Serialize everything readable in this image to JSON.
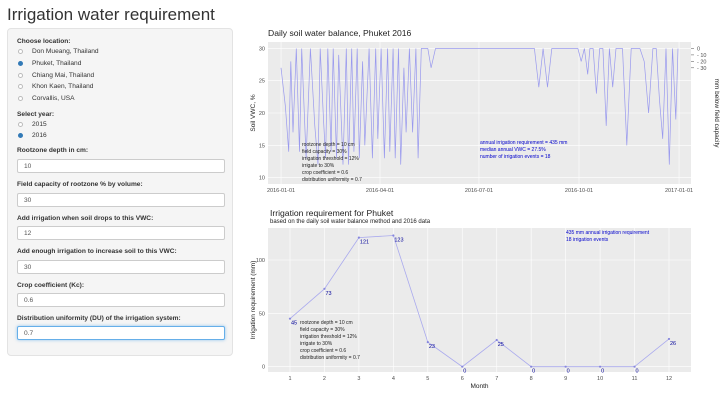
{
  "app": {
    "title": "Irrigation water requirement"
  },
  "sidebar": {
    "location": {
      "label": "Choose location:",
      "options": [
        "Don Mueang, Thailand",
        "Phuket, Thailand",
        "Chiang Mai, Thailand",
        "Khon Kaen, Thailand",
        "Corvallis, USA"
      ],
      "selected": "Phuket, Thailand"
    },
    "year": {
      "label": "Select year:",
      "options": [
        "2015",
        "2016"
      ],
      "selected": "2016"
    },
    "inputs": [
      {
        "label": "Rootzone depth in cm:",
        "value": "10"
      },
      {
        "label": "Field capacity of rootzone % by volume:",
        "value": "30"
      },
      {
        "label": "Add irrigation when soil drops to this VWC:",
        "value": "12"
      },
      {
        "label": "Add enough irrigation to increase soil to this VWC:",
        "value": "30"
      },
      {
        "label": "Crop coefficient (Kc):",
        "value": "0.6"
      },
      {
        "label": "Distribution uniformity (DU) of the irrigation system:",
        "value": "0.7"
      }
    ]
  },
  "daily_plot": {
    "title": "Daily soil water balance, Phuket 2016",
    "params": [
      "rootzone depth = 10 cm",
      "field capacity = 30%",
      "irrigation threshold = 12%",
      "irrigate to 30%",
      "crop coefficient = 0.6",
      "distribution uniformity = 0.7"
    ],
    "stats": [
      "annual irrigation requirement = 435 mm",
      "median annual VWC = 27.5%",
      "number of irrigation events = 18"
    ],
    "colors": {
      "line": "#9999ee",
      "panel": "#ebebeb",
      "grid": "#ffffff",
      "stats_text": "#0000cc",
      "params_text": "#222222"
    }
  },
  "monthly_plot": {
    "title": "Irrigation requirement for Phuket",
    "subtitle": "based on the daily soil water balance method and 2016 data",
    "annotation": [
      "435 mm annual irrigation requirement",
      "18 irrigation events"
    ],
    "params": [
      "rootzone depth = 10 cm",
      "field capacity = 30%",
      "irrigation threshold = 12%",
      "irrigate to 30%",
      "crop coefficient = 0.6",
      "distribution uniformity = 0.7"
    ]
  },
  "chart_data": [
    {
      "type": "line",
      "title": "Daily soil water balance, Phuket 2016",
      "ylabel": "Soil VWC, %",
      "y2label": "mm below field capacity",
      "x_ticks": [
        "2016-01-01",
        "2016-04-01",
        "2016-07-01",
        "2016-10-01",
        "2017-01-01"
      ],
      "y_ticks": [
        10,
        15,
        20,
        25,
        30
      ],
      "y2_ticks": [
        0,
        -10,
        -20,
        -30
      ],
      "ylim": [
        9,
        31
      ],
      "grid": true,
      "series": [
        {
          "x": [
            "2016-01-01",
            "2016-01-05",
            "2016-01-08",
            "2016-01-10",
            "2016-01-12",
            "2016-01-15",
            "2016-01-18",
            "2016-01-20",
            "2016-01-24",
            "2016-01-28",
            "2016-02-01",
            "2016-02-04",
            "2016-02-06",
            "2016-02-09",
            "2016-02-11",
            "2016-02-13",
            "2016-02-16",
            "2016-02-18",
            "2016-02-21",
            "2016-02-23",
            "2016-02-27",
            "2016-03-01",
            "2016-03-03",
            "2016-03-06",
            "2016-03-08",
            "2016-03-11",
            "2016-03-13",
            "2016-03-16",
            "2016-03-18",
            "2016-03-22",
            "2016-03-25",
            "2016-03-28",
            "2016-03-30",
            "2016-04-02",
            "2016-04-05",
            "2016-04-08",
            "2016-04-10",
            "2016-04-13",
            "2016-04-15",
            "2016-04-18",
            "2016-04-20",
            "2016-04-23",
            "2016-04-25",
            "2016-04-28",
            "2016-05-01",
            "2016-05-04",
            "2016-05-06",
            "2016-05-09",
            "2016-05-12",
            "2016-05-15",
            "2016-05-18",
            "2016-05-22",
            "2016-05-26",
            "2016-05-30",
            "2016-06-03",
            "2016-06-07",
            "2016-06-11",
            "2016-06-14",
            "2016-06-17",
            "2016-06-20",
            "2016-06-23",
            "2016-06-26",
            "2016-06-29",
            "2016-07-02",
            "2016-07-05",
            "2016-07-08",
            "2016-07-11",
            "2016-07-14",
            "2016-07-17",
            "2016-07-20",
            "2016-07-24",
            "2016-07-28",
            "2016-08-01",
            "2016-08-05",
            "2016-08-09",
            "2016-08-13",
            "2016-08-17",
            "2016-08-21",
            "2016-08-25",
            "2016-08-29",
            "2016-09-02",
            "2016-09-06",
            "2016-09-10",
            "2016-09-14",
            "2016-09-18",
            "2016-09-22",
            "2016-09-26",
            "2016-09-30",
            "2016-10-03",
            "2016-10-06",
            "2016-10-09",
            "2016-10-11",
            "2016-10-14",
            "2016-10-17",
            "2016-10-20",
            "2016-10-23",
            "2016-10-26",
            "2016-10-29",
            "2016-11-01",
            "2016-11-04",
            "2016-11-07",
            "2016-11-10",
            "2016-11-14",
            "2016-11-18",
            "2016-11-22",
            "2016-11-26",
            "2016-11-30",
            "2016-12-04",
            "2016-12-08",
            "2016-12-11",
            "2016-12-14",
            "2016-12-17",
            "2016-12-20",
            "2016-12-23",
            "2016-12-26",
            "2016-12-29",
            "2016-12-31"
          ],
          "y": [
            27,
            21,
            14,
            28,
            17,
            30,
            14,
            30,
            13,
            30,
            18,
            12,
            30,
            19,
            13,
            30,
            14,
            30,
            13,
            29,
            12,
            30,
            12,
            30,
            14,
            30,
            13,
            28,
            15,
            30,
            13,
            30,
            16,
            30,
            13,
            30,
            14,
            30,
            13,
            30,
            12,
            27,
            17,
            30,
            17,
            30,
            13,
            30,
            30,
            30,
            27,
            30,
            30,
            30,
            30,
            30,
            30,
            30,
            30,
            30,
            30,
            30,
            30,
            30,
            30,
            30,
            30,
            30,
            30,
            30,
            30,
            30,
            30,
            30,
            30,
            30,
            30,
            30,
            24,
            30,
            24,
            30,
            30,
            30,
            30,
            30,
            30,
            30,
            28,
            30,
            26,
            30,
            30,
            23,
            30,
            30,
            18,
            30,
            24,
            30,
            30,
            30,
            15,
            30,
            30,
            30,
            28,
            20,
            30,
            30,
            22,
            16,
            30,
            12,
            30,
            19,
            30
          ]
        }
      ]
    },
    {
      "type": "line",
      "title": "Irrigation requirement for Phuket",
      "subtitle": "based on the daily soil water balance method and 2016 data",
      "xlabel": "Month",
      "ylabel": "Irrigation requirement (mm)",
      "categories": [
        1,
        2,
        3,
        4,
        5,
        6,
        7,
        8,
        9,
        10,
        11,
        12
      ],
      "values": [
        45,
        73,
        121,
        123,
        23,
        0,
        25,
        0,
        0,
        0,
        0,
        26
      ],
      "ylim": [
        -5,
        130
      ],
      "grid": true
    }
  ]
}
